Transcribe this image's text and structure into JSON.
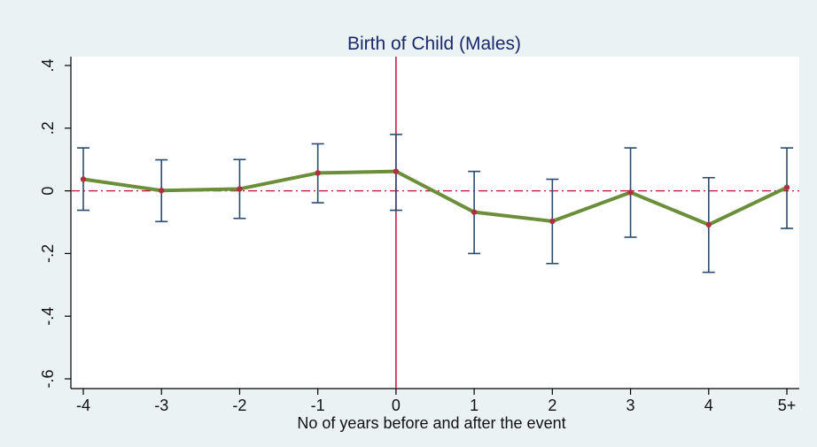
{
  "chart_data": {
    "type": "line",
    "title": "Birth of Child (Males)",
    "xlabel": "No of years before and after the event",
    "ylabel": "",
    "categories": [
      "-4",
      "-3",
      "-2",
      "-1",
      "0",
      "1",
      "2",
      "3",
      "4",
      "5+"
    ],
    "values": [
      0.037,
      0.001,
      0.006,
      0.057,
      0.062,
      -0.068,
      -0.097,
      -0.005,
      -0.108,
      0.011
    ],
    "ci_lower": [
      -0.062,
      -0.098,
      -0.088,
      -0.038,
      -0.062,
      -0.2,
      -0.232,
      -0.148,
      -0.26,
      -0.12
    ],
    "ci_upper": [
      0.137,
      0.099,
      0.1,
      0.15,
      0.18,
      0.062,
      0.037,
      0.137,
      0.042,
      0.137
    ],
    "y_ticks": [
      0.4,
      0.2,
      0,
      -0.2,
      -0.4,
      -0.6
    ],
    "y_tick_labels": [
      ".4",
      ".2",
      "0",
      "-.2",
      "-.4",
      "-.6"
    ],
    "ylim": [
      -0.62,
      0.43
    ],
    "reference_lines": {
      "y": 0,
      "x_category": "0"
    },
    "grid": false,
    "colors": {
      "line": "#6b8e3a",
      "marker": "#b03040",
      "error_bar": "#2b4a6e",
      "reference": "#c0103a",
      "background": "#eaf2f3",
      "plot_area": "#ffffff",
      "title": "#1a2a6c"
    }
  }
}
